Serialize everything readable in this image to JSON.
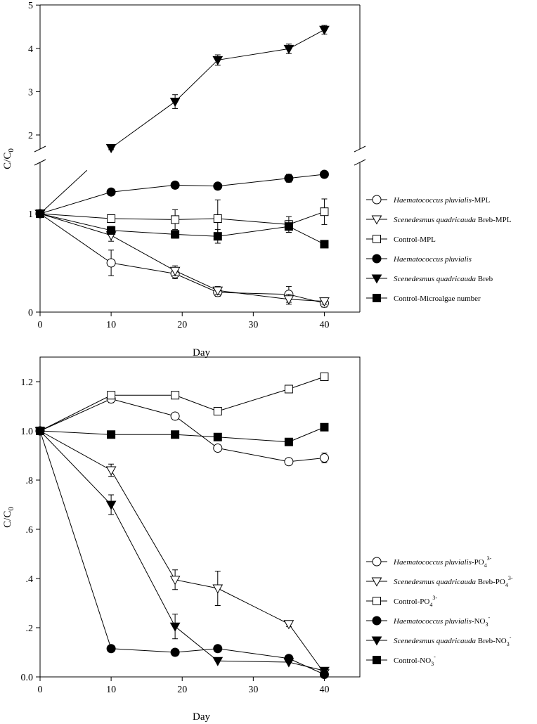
{
  "charts": [
    {
      "type": "line",
      "ylabel_main": "C/C",
      "ylabel_sub": "0",
      "xlabel": "Day",
      "xlim": [
        0,
        45
      ],
      "x_ticks": [
        "0",
        "10",
        "20",
        "30",
        "40"
      ],
      "y_ticks_lower": [
        "0",
        "1"
      ],
      "y_ticks_upper": [
        "2",
        "3",
        "4",
        "5"
      ],
      "axis_break": {
        "lower_range": [
          0,
          1.4
        ],
        "upper_range": [
          1.6,
          5
        ]
      },
      "series": [
        {
          "name": "Haematococcus pluvialis-MPL",
          "label_main": "Haematococcus pluvialis",
          "label_suffix": "-MPL",
          "marker": "circle-open",
          "x": [
            0,
            10,
            19,
            25,
            35,
            40
          ],
          "y": [
            1.0,
            0.5,
            0.39,
            0.2,
            0.18,
            0.09
          ],
          "err": [
            0,
            0.13,
            0.05,
            0.04,
            0.08,
            0.04
          ]
        },
        {
          "name": "Scenedesmus quadricauda Breb-MPL",
          "label_main": "Scenedesmus quadricauda",
          "label_suffix": " Breb-MPL",
          "marker": "triangle-open",
          "x": [
            0,
            10,
            19,
            25,
            35,
            40
          ],
          "y": [
            1.0,
            0.78,
            0.42,
            0.22,
            0.13,
            0.11
          ],
          "err": [
            0,
            0.06,
            0.05,
            0.04,
            0.05,
            0.03
          ]
        },
        {
          "name": "Control-MPL",
          "label_main": "",
          "label_suffix": "Control-MPL",
          "marker": "square-open",
          "x": [
            0,
            10,
            19,
            25,
            35,
            40
          ],
          "y": [
            1.0,
            0.95,
            0.94,
            0.95,
            0.89,
            1.02
          ],
          "err": [
            0,
            0.03,
            0.1,
            0.19,
            0.08,
            0.13
          ]
        },
        {
          "name": "Haematococcus pluvialis",
          "label_main": "Haematococcus pluvialis",
          "label_suffix": "",
          "marker": "circle-filled",
          "x": [
            0,
            10,
            19,
            25,
            35,
            40
          ],
          "y": [
            1.0,
            1.22,
            1.29,
            1.28,
            1.36,
            1.4
          ],
          "err": [
            0,
            0.03,
            0.03,
            0.03,
            0.04,
            0.02
          ]
        },
        {
          "name": "Scenedesmus quadricauda Breb",
          "label_main": "Scenedesmus quadricauda",
          "label_suffix": " Breb",
          "marker": "triangle-filled",
          "x": [
            0,
            10,
            19,
            25,
            35,
            40
          ],
          "y": [
            1.0,
            1.7,
            2.77,
            3.73,
            3.99,
            4.43
          ],
          "err": [
            0,
            0.04,
            0.16,
            0.12,
            0.11,
            0.1
          ]
        },
        {
          "name": "Control-Microalgae number",
          "label_main": "",
          "label_suffix": "Control-Microalgae number",
          "marker": "square-filled",
          "x": [
            0,
            10,
            19,
            25,
            35,
            40
          ],
          "y": [
            1.0,
            0.83,
            0.79,
            0.77,
            0.87,
            0.69
          ],
          "err": [
            0,
            0.04,
            0.04,
            0.07,
            0.06,
            0
          ]
        }
      ]
    },
    {
      "type": "line",
      "ylabel_main": "C/C",
      "ylabel_sub": "0",
      "xlabel": "Day",
      "xlim": [
        0,
        45
      ],
      "ylim": [
        0,
        1.3
      ],
      "x_ticks": [
        "0",
        "10",
        "20",
        "30",
        "40"
      ],
      "y_ticks": [
        "0.0",
        ".2",
        ".4",
        ".6",
        ".8",
        "1.0",
        "1.2"
      ],
      "series": [
        {
          "name": "Haematococcus pluvialis-PO43-",
          "label_main": "Haematococcus pluvialis",
          "label_suffix": "-PO",
          "label_sub": "4",
          "label_sup": "3-",
          "marker": "circle-open",
          "x": [
            0,
            10,
            19,
            25,
            35,
            40
          ],
          "y": [
            1.0,
            1.13,
            1.06,
            0.93,
            0.875,
            0.89
          ],
          "err": [
            0,
            0.015,
            0.01,
            0.01,
            0.01,
            0.02
          ]
        },
        {
          "name": "Scenedesmus quadricauda Breb-PO43-",
          "label_main": "Scenedesmus quadricauda",
          "label_suffix": " Breb-PO",
          "label_sub": "4",
          "label_sup": "3-",
          "marker": "triangle-open",
          "x": [
            0,
            10,
            19,
            25,
            35,
            40
          ],
          "y": [
            1.0,
            0.84,
            0.395,
            0.36,
            0.215,
            0.015
          ],
          "err": [
            0,
            0.025,
            0.04,
            0.07,
            0.01,
            0.005
          ]
        },
        {
          "name": "Control-PO43-",
          "label_main": "",
          "label_suffix": "Control-PO",
          "label_sub": "4",
          "label_sup": "3-",
          "marker": "square-open",
          "x": [
            0,
            10,
            19,
            25,
            35,
            40
          ],
          "y": [
            1.0,
            1.145,
            1.145,
            1.08,
            1.17,
            1.22
          ],
          "err": [
            0,
            0.01,
            0.01,
            0.015,
            0.01,
            0.01
          ]
        },
        {
          "name": "Haematococcus pluvialis-NO3-",
          "label_main": "Haematococcus pluvialis",
          "label_suffix": "-NO",
          "label_sub": "3",
          "label_sup": "-",
          "marker": "circle-filled",
          "x": [
            0,
            10,
            19,
            25,
            35,
            40
          ],
          "y": [
            1.0,
            0.115,
            0.1,
            0.115,
            0.075,
            0.01
          ],
          "err": [
            0,
            0,
            0,
            0,
            0,
            0
          ]
        },
        {
          "name": "Scenedesmus quadricauda Breb-NO3-",
          "label_main": "Scenedesmus quadricauda",
          "label_suffix": " Breb-NO",
          "label_sub": "3",
          "label_sup": "-",
          "marker": "triangle-filled",
          "x": [
            0,
            10,
            19,
            25,
            35,
            40
          ],
          "y": [
            1.0,
            0.7,
            0.205,
            0.065,
            0.06,
            0.025
          ],
          "err": [
            0,
            0.04,
            0.05,
            0,
            0,
            0
          ]
        },
        {
          "name": "Control-NO3-",
          "label_main": "",
          "label_suffix": "Control-NO",
          "label_sub": "3",
          "label_sup": "-",
          "marker": "square-filled",
          "x": [
            0,
            10,
            19,
            25,
            35,
            40
          ],
          "y": [
            1.0,
            0.985,
            0.985,
            0.975,
            0.955,
            1.015
          ],
          "err": [
            0,
            0,
            0,
            0,
            0,
            0
          ]
        }
      ]
    }
  ],
  "chart_data": [
    {
      "type": "line",
      "title": "",
      "xlabel": "Day",
      "ylabel": "C/C0",
      "x": [
        0,
        10,
        19,
        25,
        35,
        40
      ],
      "series": [
        {
          "name": "Haematococcus pluvialis-MPL",
          "values": [
            1.0,
            0.5,
            0.39,
            0.2,
            0.18,
            0.09
          ]
        },
        {
          "name": "Scenedesmus quadricauda Breb-MPL",
          "values": [
            1.0,
            0.78,
            0.42,
            0.22,
            0.13,
            0.11
          ]
        },
        {
          "name": "Control-MPL",
          "values": [
            1.0,
            0.95,
            0.94,
            0.95,
            0.89,
            1.02
          ]
        },
        {
          "name": "Haematococcus pluvialis",
          "values": [
            1.0,
            1.22,
            1.29,
            1.28,
            1.36,
            1.4
          ]
        },
        {
          "name": "Scenedesmus quadricauda Breb",
          "values": [
            1.0,
            1.7,
            2.77,
            3.73,
            3.99,
            4.43
          ]
        },
        {
          "name": "Control-Microalgae number",
          "values": [
            1.0,
            0.83,
            0.79,
            0.77,
            0.87,
            0.69
          ]
        }
      ]
    },
    {
      "type": "line",
      "title": "",
      "xlabel": "Day",
      "ylabel": "C/C0",
      "ylim": [
        0,
        1.3
      ],
      "x": [
        0,
        10,
        19,
        25,
        35,
        40
      ],
      "series": [
        {
          "name": "Haematococcus pluvialis-PO43-",
          "values": [
            1.0,
            1.13,
            1.06,
            0.93,
            0.875,
            0.89
          ]
        },
        {
          "name": "Scenedesmus quadricauda Breb-PO43-",
          "values": [
            1.0,
            0.84,
            0.395,
            0.36,
            0.215,
            0.015
          ]
        },
        {
          "name": "Control-PO43-",
          "values": [
            1.0,
            1.145,
            1.145,
            1.08,
            1.17,
            1.22
          ]
        },
        {
          "name": "Haematococcus pluvialis-NO3-",
          "values": [
            1.0,
            0.115,
            0.1,
            0.115,
            0.075,
            0.01
          ]
        },
        {
          "name": "Scenedesmus quadricauda Breb-NO3-",
          "values": [
            1.0,
            0.7,
            0.205,
            0.065,
            0.06,
            0.025
          ]
        },
        {
          "name": "Control-NO3-",
          "values": [
            1.0,
            0.985,
            0.985,
            0.975,
            0.955,
            1.015
          ]
        }
      ]
    }
  ]
}
